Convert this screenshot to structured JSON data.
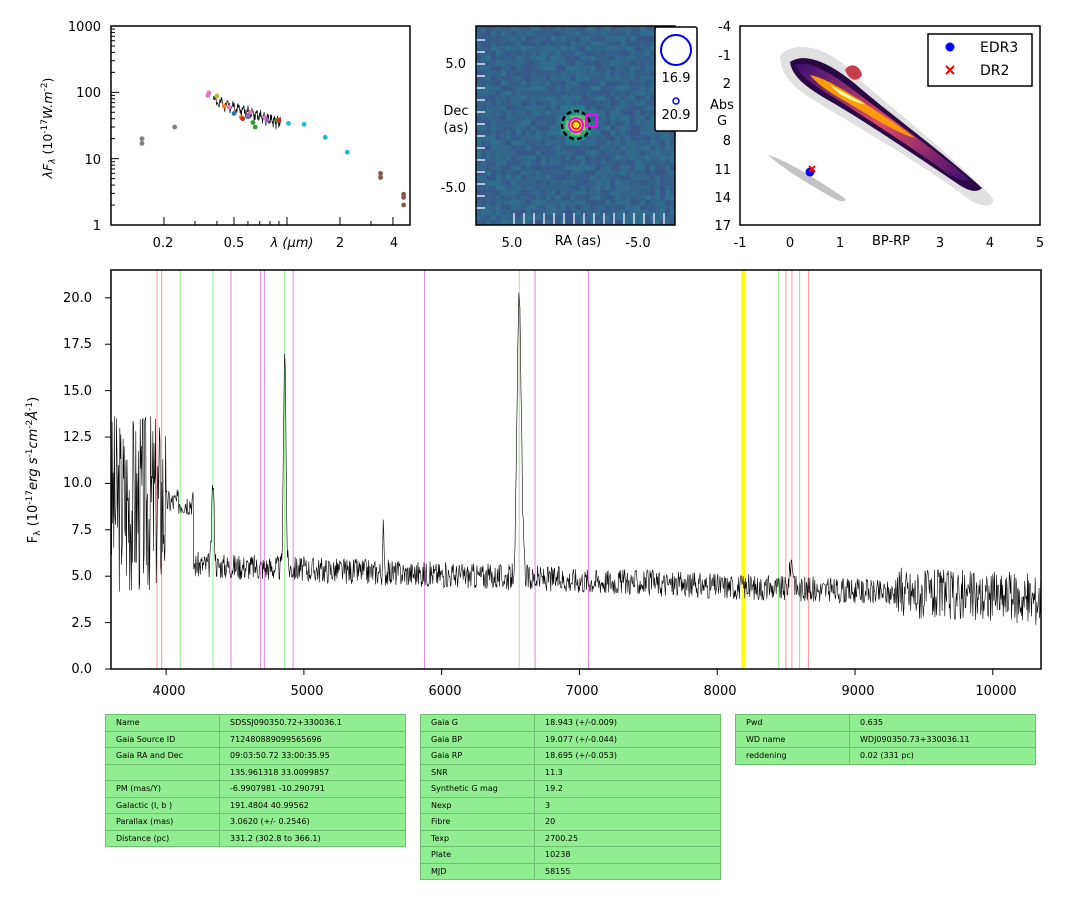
{
  "sed": {
    "ylabel": "λF",
    "ylabel_sub": "λ",
    "ylabel_rest": " (10",
    "ylabel_exp": "-17",
    "ylabel_unit": "W.m",
    "ylabel_unit_exp": "-2",
    "ylabel_close": ")",
    "xlabel": "λ (μm)",
    "yticks": [
      "1",
      "10",
      "100",
      "1000"
    ],
    "xticks": [
      "0.2",
      "0.5",
      "2",
      "4"
    ]
  },
  "image": {
    "ylabel_line1": "Dec",
    "ylabel_line2": "(as)",
    "xlabel": "RA (as)",
    "xticks": [
      "5.0",
      "-5.0"
    ],
    "yticks": [
      "5.0",
      "-5.0"
    ],
    "legend": [
      "16.9",
      "20.9"
    ]
  },
  "hr": {
    "xlabel": "BP-RP",
    "ylabel_line1": "Abs",
    "ylabel_line2": "G",
    "xticks": [
      "-1",
      "0",
      "1",
      "2",
      "3",
      "4",
      "5"
    ],
    "yticks": [
      "-4",
      "-1",
      "2",
      "5",
      "8",
      "11",
      "14",
      "17"
    ],
    "legend": [
      {
        "label": "EDR3",
        "color": "#0000ff",
        "marker": "dot"
      },
      {
        "label": "DR2",
        "color": "#ff0000",
        "marker": "x"
      }
    ]
  },
  "spectrum": {
    "ylabel": "F",
    "ylabel_sub": "λ",
    "ylabel_mid": " (10",
    "ylabel_exp": "-17",
    "ylabel_units": "erg s",
    "ylabel_exp2": "-1",
    "ylabel_cm": "cm",
    "ylabel_exp3": "-2",
    "ylabel_ang": "Å",
    "ylabel_exp4": "-1",
    "ylabel_close": ")",
    "xticks": [
      "4000",
      "5000",
      "6000",
      "7000",
      "8000",
      "9000",
      "10000"
    ],
    "yticks": [
      "0.0",
      "2.5",
      "5.0",
      "7.5",
      "10.0",
      "12.5",
      "15.0",
      "17.5",
      "20.0"
    ]
  },
  "chart_data": [
    {
      "type": "scatter",
      "title": "",
      "xscale": "log",
      "yscale": "log",
      "xlim": [
        0.1,
        5.0
      ],
      "ylim": [
        1,
        1000
      ],
      "xlabel": "λ (μm)",
      "ylabel": "λFλ (10^-17 W.m^-2)",
      "series": [
        {
          "color": "#7f7f7f",
          "x": [
            0.15,
            0.15,
            0.23
          ],
          "y": [
            17,
            20,
            30
          ]
        },
        {
          "color": "#e377c2",
          "x": [
            0.355,
            0.36,
            0.47,
            0.62,
            0.75
          ],
          "y": [
            90,
            98,
            60,
            50,
            42
          ]
        },
        {
          "color": "#bcbd22",
          "x": [
            0.4
          ],
          "y": [
            88
          ]
        },
        {
          "color": "#ff7f0e",
          "x": [
            0.44,
            0.55
          ],
          "y": [
            62,
            42
          ]
        },
        {
          "color": "#1f77b4",
          "x": [
            0.5,
            0.6
          ],
          "y": [
            48,
            43
          ]
        },
        {
          "color": "#2ca02c",
          "x": [
            0.64,
            0.66,
            0.88
          ],
          "y": [
            35,
            30,
            38
          ]
        },
        {
          "color": "#9467bd",
          "x": [
            0.6,
            0.77
          ],
          "y": [
            45,
            38
          ]
        },
        {
          "color": "#d62728",
          "x": [
            0.56,
            0.9
          ],
          "y": [
            40,
            38
          ]
        },
        {
          "color": "#17becf",
          "x": [
            1.02,
            1.25,
            1.65,
            2.2
          ],
          "y": [
            34,
            33,
            21,
            12.5
          ]
        },
        {
          "color": "#8c564b",
          "x": [
            3.4,
            3.4,
            4.6,
            4.6,
            4.6
          ],
          "y": [
            5.2,
            6.0,
            2.6,
            2.9,
            2.0
          ]
        }
      ]
    },
    {
      "type": "heatmap",
      "title": "",
      "xlabel": "RA (as)",
      "ylabel": "Dec (as)",
      "xlim": [
        10,
        -10
      ],
      "ylim": [
        -10,
        10
      ],
      "source_position": [
        0.3,
        0.3
      ],
      "markers": [
        {
          "shape": "circle",
          "color": "#000000",
          "style": "dashed",
          "x": 0.3,
          "y": 0.3
        },
        {
          "shape": "circle",
          "color": "#ff00ff",
          "x": 0.3,
          "y": 0.3
        },
        {
          "shape": "circle",
          "color": "#ff0000",
          "x": 0.3,
          "y": 0.3
        },
        {
          "shape": "square",
          "color": "#ff00ff",
          "x": -1.5,
          "y": 0.5
        }
      ],
      "legend": [
        {
          "label": "16.9",
          "size": "large"
        },
        {
          "label": "20.9",
          "size": "small"
        }
      ]
    },
    {
      "type": "scatter",
      "title": "",
      "xlabel": "BP-RP",
      "ylabel": "Abs G",
      "xlim": [
        -1,
        5
      ],
      "ylim": [
        17,
        -4
      ],
      "series": [
        {
          "name": "EDR3",
          "color": "#0000ff",
          "x": [
            0.4
          ],
          "y": [
            11.1
          ]
        },
        {
          "name": "DR2",
          "color": "#ff0000",
          "x": [
            0.45
          ],
          "y": [
            10.8
          ]
        }
      ],
      "legend_position": "top-right"
    },
    {
      "type": "line",
      "title": "",
      "xlabel": "",
      "ylabel": "Fλ (10^-17 erg s^-1 cm^-2 Å^-1)",
      "xlim": [
        3600,
        10350
      ],
      "ylim": [
        0,
        21.5
      ],
      "x": [
        3600,
        3700,
        3800,
        3900,
        4000,
        4200,
        4340,
        4500,
        4700,
        4861,
        5000,
        5200,
        5400,
        5577,
        5800,
        6000,
        6200,
        6400,
        6563,
        6700,
        6900,
        7100,
        7300,
        7500,
        7700,
        7900,
        8100,
        8300,
        8500,
        8700,
        8900,
        9100,
        9300,
        9500,
        9700,
        9900,
        10100,
        10300
      ],
      "y": [
        20,
        15,
        12,
        10.5,
        9.5,
        9.2,
        13,
        9.2,
        8.8,
        19,
        8.2,
        7.6,
        7.2,
        6.8,
        6.5,
        6.1,
        5.8,
        5.5,
        21,
        5.4,
        5.0,
        4.9,
        4.7,
        4.5,
        4.4,
        4.2,
        4.1,
        4.0,
        5.5,
        3.8,
        3.6,
        3.9,
        3.5,
        3.6,
        3.7,
        3.7,
        4.5,
        3.9
      ],
      "vlines": [
        {
          "color": "#ff9999",
          "x": [
            3934,
            3968,
            8498,
            8542,
            8662
          ]
        },
        {
          "color": "#90ee90",
          "x": [
            4102,
            4340,
            4861,
            6563,
            8446,
            8598
          ]
        },
        {
          "color": "#dd88dd",
          "x": [
            4471,
            4686,
            4713,
            4922,
            5876,
            6678,
            7065
          ]
        },
        {
          "color": "#ffff00",
          "x": [
            8183,
            8195
          ]
        }
      ]
    }
  ],
  "tables": [
    [
      [
        "Name",
        "SDSSJ090350.72+330036.1"
      ],
      [
        "Gaia Source ID",
        "712480889099565696"
      ],
      [
        "Gaia RA and Dec",
        "09:03:50.72    33:00:35.95"
      ],
      [
        "",
        "135.961318    33.0099857"
      ],
      [
        "PM (mas/Y)",
        "-6.9907981    -10.290791"
      ],
      [
        "Galactic (l, b )",
        "191.4804    40.99562"
      ],
      [
        "Parallax (mas)",
        "3.0620 (+/- 0.2546)"
      ],
      [
        "Distance (pc)",
        "331.2 (302.8 to 366.1)"
      ]
    ],
    [
      [
        "Gaia G",
        "18.943 (+/-0.009)"
      ],
      [
        "Gaia BP",
        "19.077 (+/-0.044)"
      ],
      [
        "Gaia RP",
        "18.695 (+/-0.053)"
      ],
      [
        "SNR",
        "11.3"
      ],
      [
        "Synthetic G mag",
        "19.2"
      ],
      [
        "Nexp",
        "3"
      ],
      [
        "Fibre",
        "20"
      ],
      [
        "Texp",
        "2700.25"
      ],
      [
        "Plate",
        "10238"
      ],
      [
        "MJD",
        "58155"
      ]
    ],
    [
      [
        "Pwd",
        "0.635"
      ],
      [
        "WD name",
        "WDJ090350.73+330036.11"
      ],
      [
        "reddening",
        "0.02 (331 pc)"
      ]
    ]
  ]
}
